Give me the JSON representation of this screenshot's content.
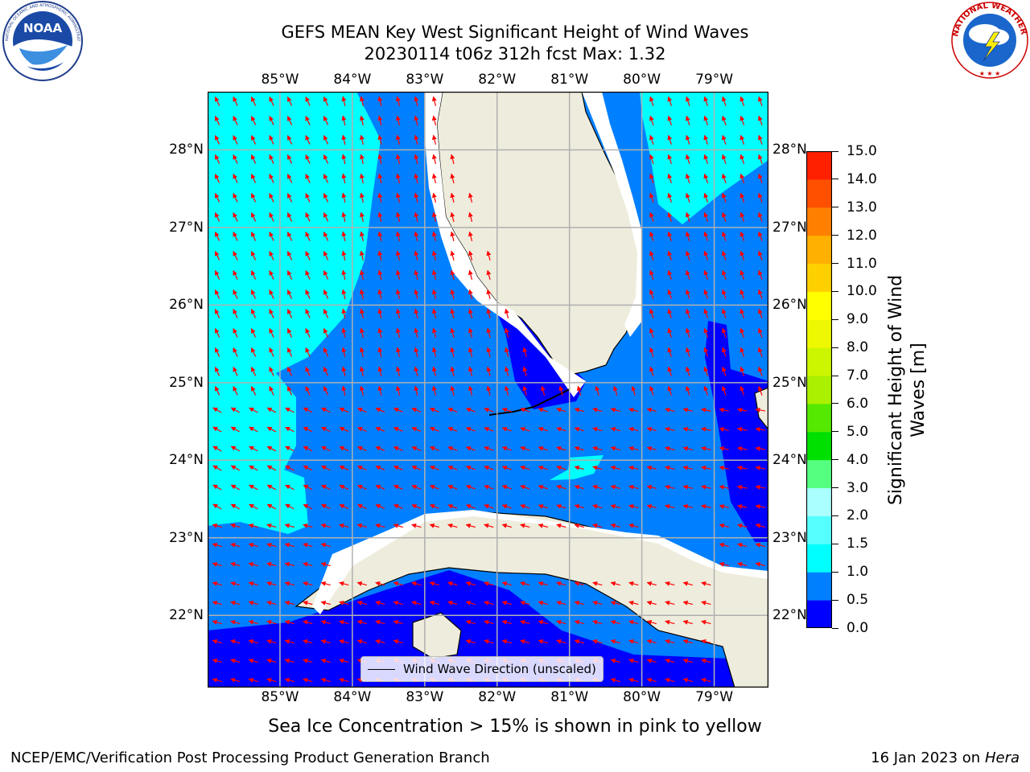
{
  "header": {
    "title_line1": "GEFS MEAN Key West Significant Height of Wind Waves",
    "title_line2": "20230114 t06z 312h fcst   Max: 1.32"
  },
  "logos": {
    "left": {
      "name": "noaa-logo",
      "text": "NOAA",
      "ring_text": "NATIONAL OCEANIC AND ATMOSPHERIC ADMINISTRATION · U.S. DEPARTMENT OF COMMERCE"
    },
    "right": {
      "name": "nws-logo",
      "ring_text": "NATIONAL WEATHER SERVICE"
    }
  },
  "map": {
    "lon_ticks": [
      "85°W",
      "84°W",
      "83°W",
      "82°W",
      "81°W",
      "80°W",
      "79°W"
    ],
    "lat_ticks": [
      "28°N",
      "27°N",
      "26°N",
      "25°N",
      "24°N",
      "23°N",
      "22°N"
    ],
    "lon_values": [
      -85,
      -84,
      -83,
      -82,
      -81,
      -80,
      -79
    ],
    "lat_values": [
      28,
      27,
      26,
      25,
      24,
      23,
      22
    ],
    "extent": {
      "lon_min": -86.0,
      "lon_max": -78.25,
      "lat_min": 21.07,
      "lat_max": 28.75
    },
    "grid": true,
    "wave_direction_deg": "predominantly toward north-northwest in the east and northwest/west in the south",
    "legend_label": "Wind Wave Direction (unscaled)",
    "colors": {
      "ocean_0_0_5": "#0000ff",
      "ocean_0_5_1_0": "#0080ff",
      "ocean_1_0_1_5": "#00ffff",
      "land": "#eeecdc",
      "arrow": "#ff0000",
      "grid": "#b0b0b0"
    }
  },
  "colorbar": {
    "label": "Significant Height of Wind Waves [m]",
    "ticks": [
      "0.0",
      "0.5",
      "1.0",
      "1.5",
      "2.0",
      "3.0",
      "4.0",
      "5.0",
      "6.0",
      "7.0",
      "8.0",
      "9.0",
      "10.0",
      "11.0",
      "12.0",
      "13.0",
      "14.0",
      "15.0"
    ],
    "levels": [
      0,
      0.5,
      1,
      1.5,
      2,
      3,
      4,
      5,
      6,
      7,
      8,
      9,
      10,
      11,
      12,
      13,
      14,
      15
    ],
    "colors": [
      "#0000ff",
      "#0080ff",
      "#00ffff",
      "#55ffff",
      "#aaffff",
      "#55ff80",
      "#00e000",
      "#55e800",
      "#aaf000",
      "#ccf500",
      "#eef800",
      "#ffff00",
      "#ffd000",
      "#ffb000",
      "#ff8000",
      "#ff5000",
      "#ff2000"
    ]
  },
  "chart_data": {
    "type": "heatmap",
    "title": "GEFS MEAN Key West Significant Height of Wind Waves",
    "subtitle": "20230114 t06z 312h fcst   Max: 1.32",
    "xlabel": "",
    "ylabel": "",
    "x_ticks": [
      "85°W",
      "84°W",
      "83°W",
      "82°W",
      "81°W",
      "80°W",
      "79°W"
    ],
    "y_ticks": [
      "28°N",
      "27°N",
      "26°N",
      "25°N",
      "24°N",
      "23°N",
      "22°N"
    ],
    "colorbar_label": "Significant Height of Wind Waves [m]",
    "colorbar_range": [
      0.0,
      15.0
    ],
    "max_value": 1.32,
    "legend": [
      "Wind Wave Direction (unscaled)"
    ],
    "grid": true
  },
  "notes": {
    "sea_ice": "Sea Ice Concentration > 15% is shown in pink to yellow"
  },
  "footer": {
    "left": "NCEP/EMC/Verification Post Processing Product Generation Branch",
    "right_prefix": "16 Jan 2023 on ",
    "right_host": "Hera"
  }
}
